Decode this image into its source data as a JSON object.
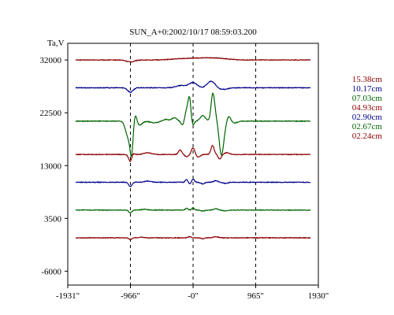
{
  "chart_data": {
    "type": "line",
    "title": "SUN_A+0:2002/10/17 08:59:03.200",
    "ylabel": "Ta,V",
    "xlabel": "",
    "x_ticks": [
      "-1931\"",
      "-966\"",
      "-0\"",
      "965\"",
      "1930\""
    ],
    "x_tick_values": [
      -1931,
      -966,
      0,
      965,
      1930
    ],
    "y_ticks": [
      "32000",
      "22500",
      "13000",
      "3500",
      "-6000"
    ],
    "y_tick_values": [
      32000,
      22500,
      13000,
      3500,
      -6000
    ],
    "xlim": [
      -1931,
      1930
    ],
    "ylim": [
      -8500,
      35000
    ],
    "dashed_verticals": [
      -966,
      0,
      965
    ],
    "grid": false,
    "legend_position": "right",
    "series": [
      {
        "name": "15.38cm",
        "color": "#8b0000",
        "baseline": 32000,
        "features": [
          [
            -966,
            -350,
            60
          ],
          [
            -100,
            250,
            200
          ],
          [
            300,
            350,
            200
          ]
        ]
      },
      {
        "name": "10.17cm",
        "color": "#00008b",
        "baseline": 27000,
        "features": [
          [
            -966,
            -800,
            40
          ],
          [
            -180,
            400,
            80
          ],
          [
            0,
            900,
            60
          ],
          [
            280,
            1200,
            60
          ],
          [
            450,
            -300,
            80
          ]
        ]
      },
      {
        "name": "07.03cm",
        "color": "#006400",
        "baseline": 21000,
        "features": [
          [
            -1000,
            -2800,
            40
          ],
          [
            -945,
            -5500,
            25
          ],
          [
            -900,
            2000,
            30
          ],
          [
            -840,
            -800,
            50
          ],
          [
            -600,
            -300,
            60
          ],
          [
            -420,
            300,
            40
          ],
          [
            -290,
            600,
            40
          ],
          [
            -150,
            -900,
            30
          ],
          [
            -110,
            1800,
            25
          ],
          [
            -55,
            4500,
            25
          ],
          [
            -15,
            -1200,
            25
          ],
          [
            150,
            1000,
            40
          ],
          [
            300,
            4200,
            25
          ],
          [
            330,
            1500,
            25
          ],
          [
            430,
            -4500,
            30
          ],
          [
            470,
            -2500,
            40
          ],
          [
            540,
            1500,
            40
          ],
          [
            600,
            -500,
            60
          ]
        ]
      },
      {
        "name": "04.93cm",
        "color": "#8b0000",
        "baseline": 15000,
        "features": [
          [
            -966,
            -1400,
            25
          ],
          [
            -935,
            400,
            25
          ],
          [
            -700,
            300,
            60
          ],
          [
            -200,
            800,
            25
          ],
          [
            -100,
            -400,
            25
          ],
          [
            0,
            1200,
            25
          ],
          [
            80,
            -500,
            30
          ],
          [
            300,
            1600,
            25
          ],
          [
            410,
            -800,
            25
          ],
          [
            520,
            300,
            40
          ]
        ]
      },
      {
        "name": "02.90cm",
        "color": "#00008b",
        "baseline": 10000,
        "features": [
          [
            -966,
            -800,
            25
          ],
          [
            -700,
            200,
            50
          ],
          [
            -100,
            500,
            20
          ],
          [
            -50,
            -300,
            20
          ],
          [
            0,
            600,
            20
          ],
          [
            150,
            -300,
            30
          ],
          [
            350,
            300,
            30
          ],
          [
            500,
            -200,
            40
          ]
        ]
      },
      {
        "name": "02.67cm",
        "color": "#006400",
        "baseline": 5000,
        "features": [
          [
            -966,
            -500,
            25
          ],
          [
            -750,
            150,
            40
          ],
          [
            -100,
            300,
            20
          ],
          [
            0,
            400,
            20
          ],
          [
            150,
            -200,
            30
          ],
          [
            350,
            250,
            30
          ],
          [
            500,
            -150,
            40
          ]
        ]
      },
      {
        "name": "02.24cm",
        "color": "#8b0000",
        "baseline": 0,
        "features": [
          [
            -966,
            -300,
            25
          ],
          [
            -800,
            150,
            40
          ],
          [
            -50,
            200,
            25
          ],
          [
            150,
            -150,
            30
          ],
          [
            350,
            200,
            40
          ]
        ]
      }
    ]
  }
}
